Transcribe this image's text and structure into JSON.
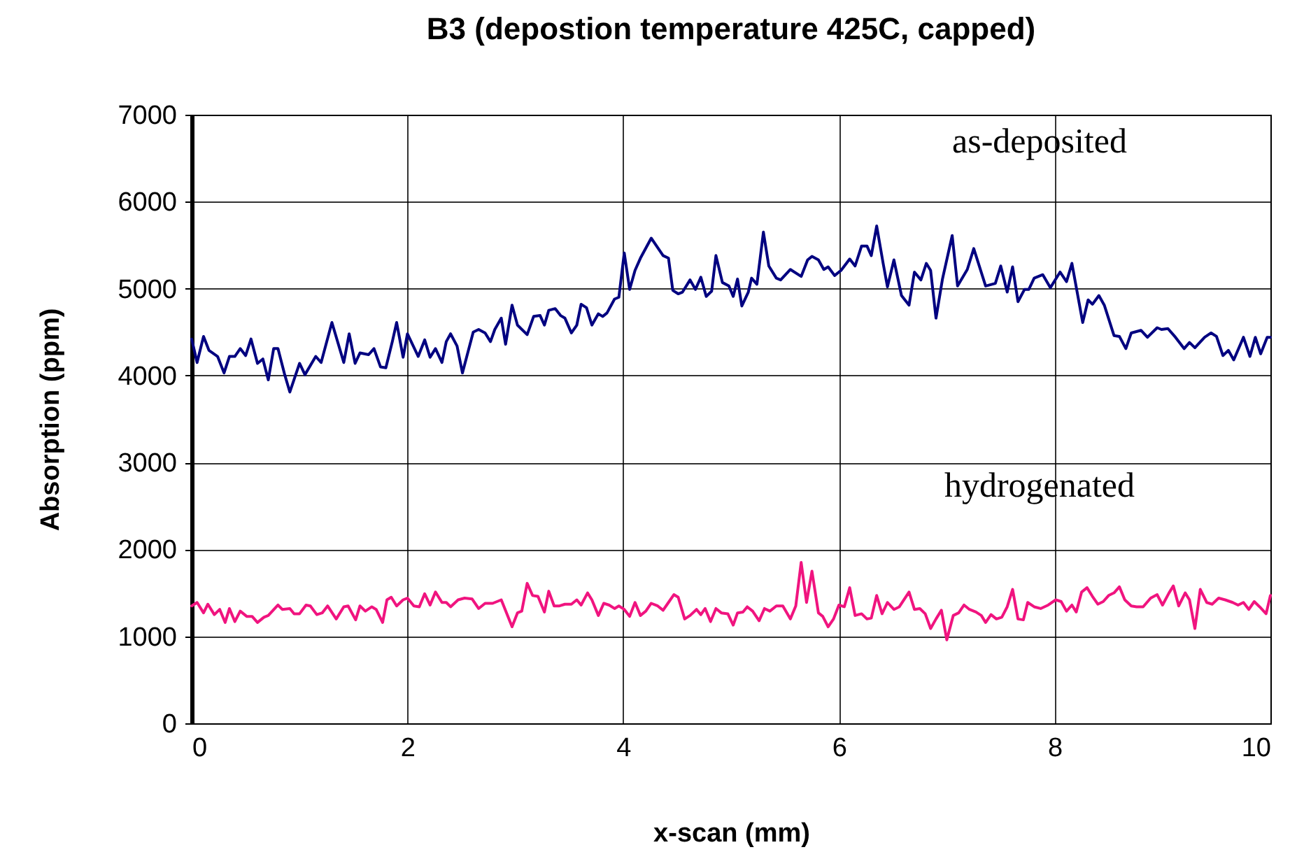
{
  "chart_data": {
    "type": "line",
    "title": "B3 (depostion temperature 425C, capped)",
    "xlabel": "x-scan (mm)",
    "ylabel": "Absorption (ppm)",
    "xlim": [
      0,
      10
    ],
    "xticks": [
      0,
      2,
      4,
      6,
      8,
      10
    ],
    "ylim": [
      0,
      7000
    ],
    "yticks": [
      0,
      1000,
      2000,
      3000,
      4000,
      5000,
      6000,
      7000
    ],
    "grid": true,
    "line_style": "solid",
    "series": [
      {
        "name": "as-deposited",
        "color": "#000080",
        "x": [
          0,
          0.05,
          0.11,
          0.16,
          0.24,
          0.3,
          0.35,
          0.4,
          0.45,
          0.5,
          0.55,
          0.61,
          0.66,
          0.71,
          0.76,
          0.8,
          0.86,
          0.91,
          1.0,
          1.05,
          1.15,
          1.2,
          1.3,
          1.41,
          1.46,
          1.515,
          1.56,
          1.64,
          1.69,
          1.75,
          1.8,
          1.86,
          1.9,
          1.96,
          2.0,
          2.1,
          2.16,
          2.21,
          2.26,
          2.32,
          2.36,
          2.4,
          2.46,
          2.51,
          2.61,
          2.66,
          2.72,
          2.77,
          2.81,
          2.87,
          2.91,
          2.97,
          3.02,
          3.11,
          3.17,
          3.23,
          3.27,
          3.31,
          3.37,
          3.42,
          3.46,
          3.52,
          3.57,
          3.61,
          3.66,
          3.71,
          3.77,
          3.81,
          3.85,
          3.92,
          3.96,
          4.01,
          4.06,
          4.11,
          4.16,
          4.26,
          4.37,
          4.42,
          4.46,
          4.51,
          4.55,
          4.62,
          4.67,
          4.72,
          4.77,
          4.82,
          4.86,
          4.92,
          4.98,
          5.02,
          5.06,
          5.1,
          5.16,
          5.19,
          5.24,
          5.3,
          5.35,
          5.42,
          5.46,
          5.55,
          5.65,
          5.71,
          5.75,
          5.81,
          5.86,
          5.9,
          5.96,
          6.02,
          6.1,
          6.15,
          6.21,
          6.26,
          6.3,
          6.35,
          6.41,
          6.45,
          6.51,
          6.58,
          6.65,
          6.7,
          6.76,
          6.81,
          6.85,
          6.9,
          6.96,
          7.05,
          7.1,
          7.19,
          7.25,
          7.36,
          7.45,
          7.5,
          7.56,
          7.61,
          7.66,
          7.72,
          7.76,
          7.81,
          7.89,
          7.96,
          8.05,
          8.11,
          8.16,
          8.26,
          8.31,
          8.35,
          8.41,
          8.46,
          8.55,
          8.6,
          8.66,
          8.71,
          8.8,
          8.86,
          8.95,
          8.99,
          9.05,
          9.12,
          9.2,
          9.25,
          9.3,
          9.39,
          9.45,
          9.5,
          9.56,
          9.61,
          9.66,
          9.75,
          9.81,
          9.86,
          9.91,
          9.97,
          10.0
        ],
        "values": [
          4420,
          4150,
          4450,
          4290,
          4220,
          4030,
          4220,
          4220,
          4310,
          4230,
          4420,
          4140,
          4190,
          3950,
          4310,
          4310,
          4020,
          3810,
          4140,
          4010,
          4220,
          4150,
          4610,
          4150,
          4480,
          4140,
          4260,
          4240,
          4310,
          4100,
          4090,
          4390,
          4610,
          4210,
          4480,
          4220,
          4410,
          4210,
          4310,
          4150,
          4390,
          4480,
          4340,
          4030,
          4500,
          4530,
          4490,
          4390,
          4530,
          4660,
          4360,
          4810,
          4580,
          4470,
          4680,
          4690,
          4580,
          4750,
          4770,
          4690,
          4660,
          4490,
          4580,
          4820,
          4780,
          4580,
          4710,
          4680,
          4720,
          4880,
          4900,
          5410,
          4990,
          5210,
          5350,
          5580,
          5380,
          5350,
          4980,
          4940,
          4960,
          5100,
          4990,
          5130,
          4910,
          4970,
          5380,
          5070,
          5030,
          4910,
          5110,
          4800,
          4960,
          5120,
          5050,
          5650,
          5260,
          5120,
          5100,
          5220,
          5140,
          5330,
          5370,
          5330,
          5220,
          5250,
          5150,
          5210,
          5340,
          5260,
          5490,
          5490,
          5380,
          5720,
          5290,
          5020,
          5330,
          4920,
          4810,
          5190,
          5100,
          5290,
          5210,
          4660,
          5110,
          5610,
          5030,
          5220,
          5460,
          5030,
          5060,
          5260,
          4960,
          5250,
          4850,
          4990,
          4990,
          5120,
          5160,
          5010,
          5190,
          5080,
          5290,
          4610,
          4870,
          4820,
          4920,
          4810,
          4460,
          4450,
          4310,
          4490,
          4520,
          4440,
          4550,
          4530,
          4540,
          4440,
          4310,
          4380,
          4320,
          4440,
          4490,
          4450,
          4230,
          4290,
          4180,
          4440,
          4220,
          4440,
          4250,
          4440,
          4440
        ]
      },
      {
        "name": "hydrogenated",
        "color": "#f0147f",
        "x": [
          0,
          0.05,
          0.11,
          0.15,
          0.21,
          0.26,
          0.31,
          0.35,
          0.4,
          0.45,
          0.51,
          0.56,
          0.61,
          0.67,
          0.71,
          0.8,
          0.84,
          0.91,
          0.95,
          1.0,
          1.06,
          1.1,
          1.16,
          1.21,
          1.26,
          1.34,
          1.41,
          1.45,
          1.52,
          1.56,
          1.61,
          1.67,
          1.71,
          1.77,
          1.81,
          1.85,
          1.9,
          1.96,
          2.0,
          2.06,
          2.11,
          2.16,
          2.21,
          2.26,
          2.32,
          2.36,
          2.4,
          2.47,
          2.53,
          2.6,
          2.66,
          2.72,
          2.79,
          2.87,
          2.97,
          3.02,
          3.06,
          3.11,
          3.16,
          3.21,
          3.27,
          3.31,
          3.36,
          3.41,
          3.46,
          3.52,
          3.57,
          3.61,
          3.67,
          3.71,
          3.77,
          3.82,
          3.87,
          3.92,
          3.96,
          4.01,
          4.06,
          4.11,
          4.16,
          4.21,
          4.26,
          4.32,
          4.37,
          4.42,
          4.47,
          4.51,
          4.57,
          4.62,
          4.68,
          4.72,
          4.76,
          4.81,
          4.86,
          4.91,
          4.97,
          5.02,
          5.06,
          5.11,
          5.15,
          5.2,
          5.26,
          5.31,
          5.36,
          5.42,
          5.48,
          5.55,
          5.6,
          5.65,
          5.7,
          5.75,
          5.81,
          5.85,
          5.9,
          5.95,
          6.0,
          6.05,
          6.1,
          6.15,
          6.21,
          6.26,
          6.3,
          6.35,
          6.4,
          6.45,
          6.51,
          6.56,
          6.65,
          6.7,
          6.75,
          6.8,
          6.85,
          6.9,
          6.95,
          7.0,
          7.06,
          7.11,
          7.16,
          7.21,
          7.27,
          7.32,
          7.36,
          7.41,
          7.46,
          7.51,
          7.56,
          7.61,
          7.66,
          7.71,
          7.75,
          7.81,
          7.87,
          7.94,
          8.01,
          8.06,
          8.11,
          8.16,
          8.2,
          8.25,
          8.3,
          8.35,
          8.4,
          8.45,
          8.5,
          8.55,
          8.6,
          8.65,
          8.71,
          8.76,
          8.82,
          8.89,
          8.95,
          9.0,
          9.06,
          9.1,
          9.15,
          9.21,
          9.25,
          9.3,
          9.35,
          9.41,
          9.46,
          9.52,
          9.58,
          9.65,
          9.7,
          9.75,
          9.8,
          9.85,
          9.9,
          9.96,
          10.0
        ],
        "values": [
          1350,
          1390,
          1270,
          1370,
          1250,
          1310,
          1160,
          1320,
          1170,
          1290,
          1230,
          1230,
          1160,
          1220,
          1240,
          1360,
          1310,
          1320,
          1260,
          1260,
          1360,
          1350,
          1250,
          1270,
          1350,
          1200,
          1340,
          1350,
          1190,
          1350,
          1290,
          1340,
          1310,
          1160,
          1420,
          1450,
          1350,
          1420,
          1440,
          1350,
          1340,
          1490,
          1360,
          1510,
          1390,
          1390,
          1340,
          1420,
          1440,
          1430,
          1320,
          1380,
          1380,
          1420,
          1110,
          1270,
          1290,
          1610,
          1470,
          1460,
          1280,
          1520,
          1350,
          1350,
          1370,
          1370,
          1420,
          1360,
          1500,
          1420,
          1240,
          1380,
          1360,
          1320,
          1350,
          1310,
          1230,
          1390,
          1240,
          1290,
          1380,
          1350,
          1300,
          1390,
          1480,
          1450,
          1200,
          1240,
          1310,
          1250,
          1320,
          1170,
          1320,
          1270,
          1260,
          1130,
          1270,
          1280,
          1340,
          1290,
          1180,
          1320,
          1290,
          1350,
          1350,
          1200,
          1350,
          1850,
          1390,
          1750,
          1270,
          1230,
          1110,
          1200,
          1360,
          1340,
          1560,
          1240,
          1260,
          1200,
          1210,
          1470,
          1260,
          1390,
          1310,
          1340,
          1510,
          1310,
          1320,
          1260,
          1090,
          1200,
          1300,
          960,
          1240,
          1270,
          1360,
          1310,
          1280,
          1240,
          1160,
          1250,
          1200,
          1220,
          1340,
          1540,
          1200,
          1190,
          1390,
          1340,
          1320,
          1360,
          1420,
          1400,
          1290,
          1360,
          1280,
          1510,
          1560,
          1460,
          1370,
          1400,
          1470,
          1500,
          1570,
          1420,
          1350,
          1340,
          1340,
          1440,
          1480,
          1360,
          1500,
          1580,
          1350,
          1500,
          1420,
          1090,
          1540,
          1390,
          1370,
          1440,
          1420,
          1390,
          1360,
          1390,
          1310,
          1400,
          1340,
          1260,
          1470
        ]
      }
    ]
  }
}
